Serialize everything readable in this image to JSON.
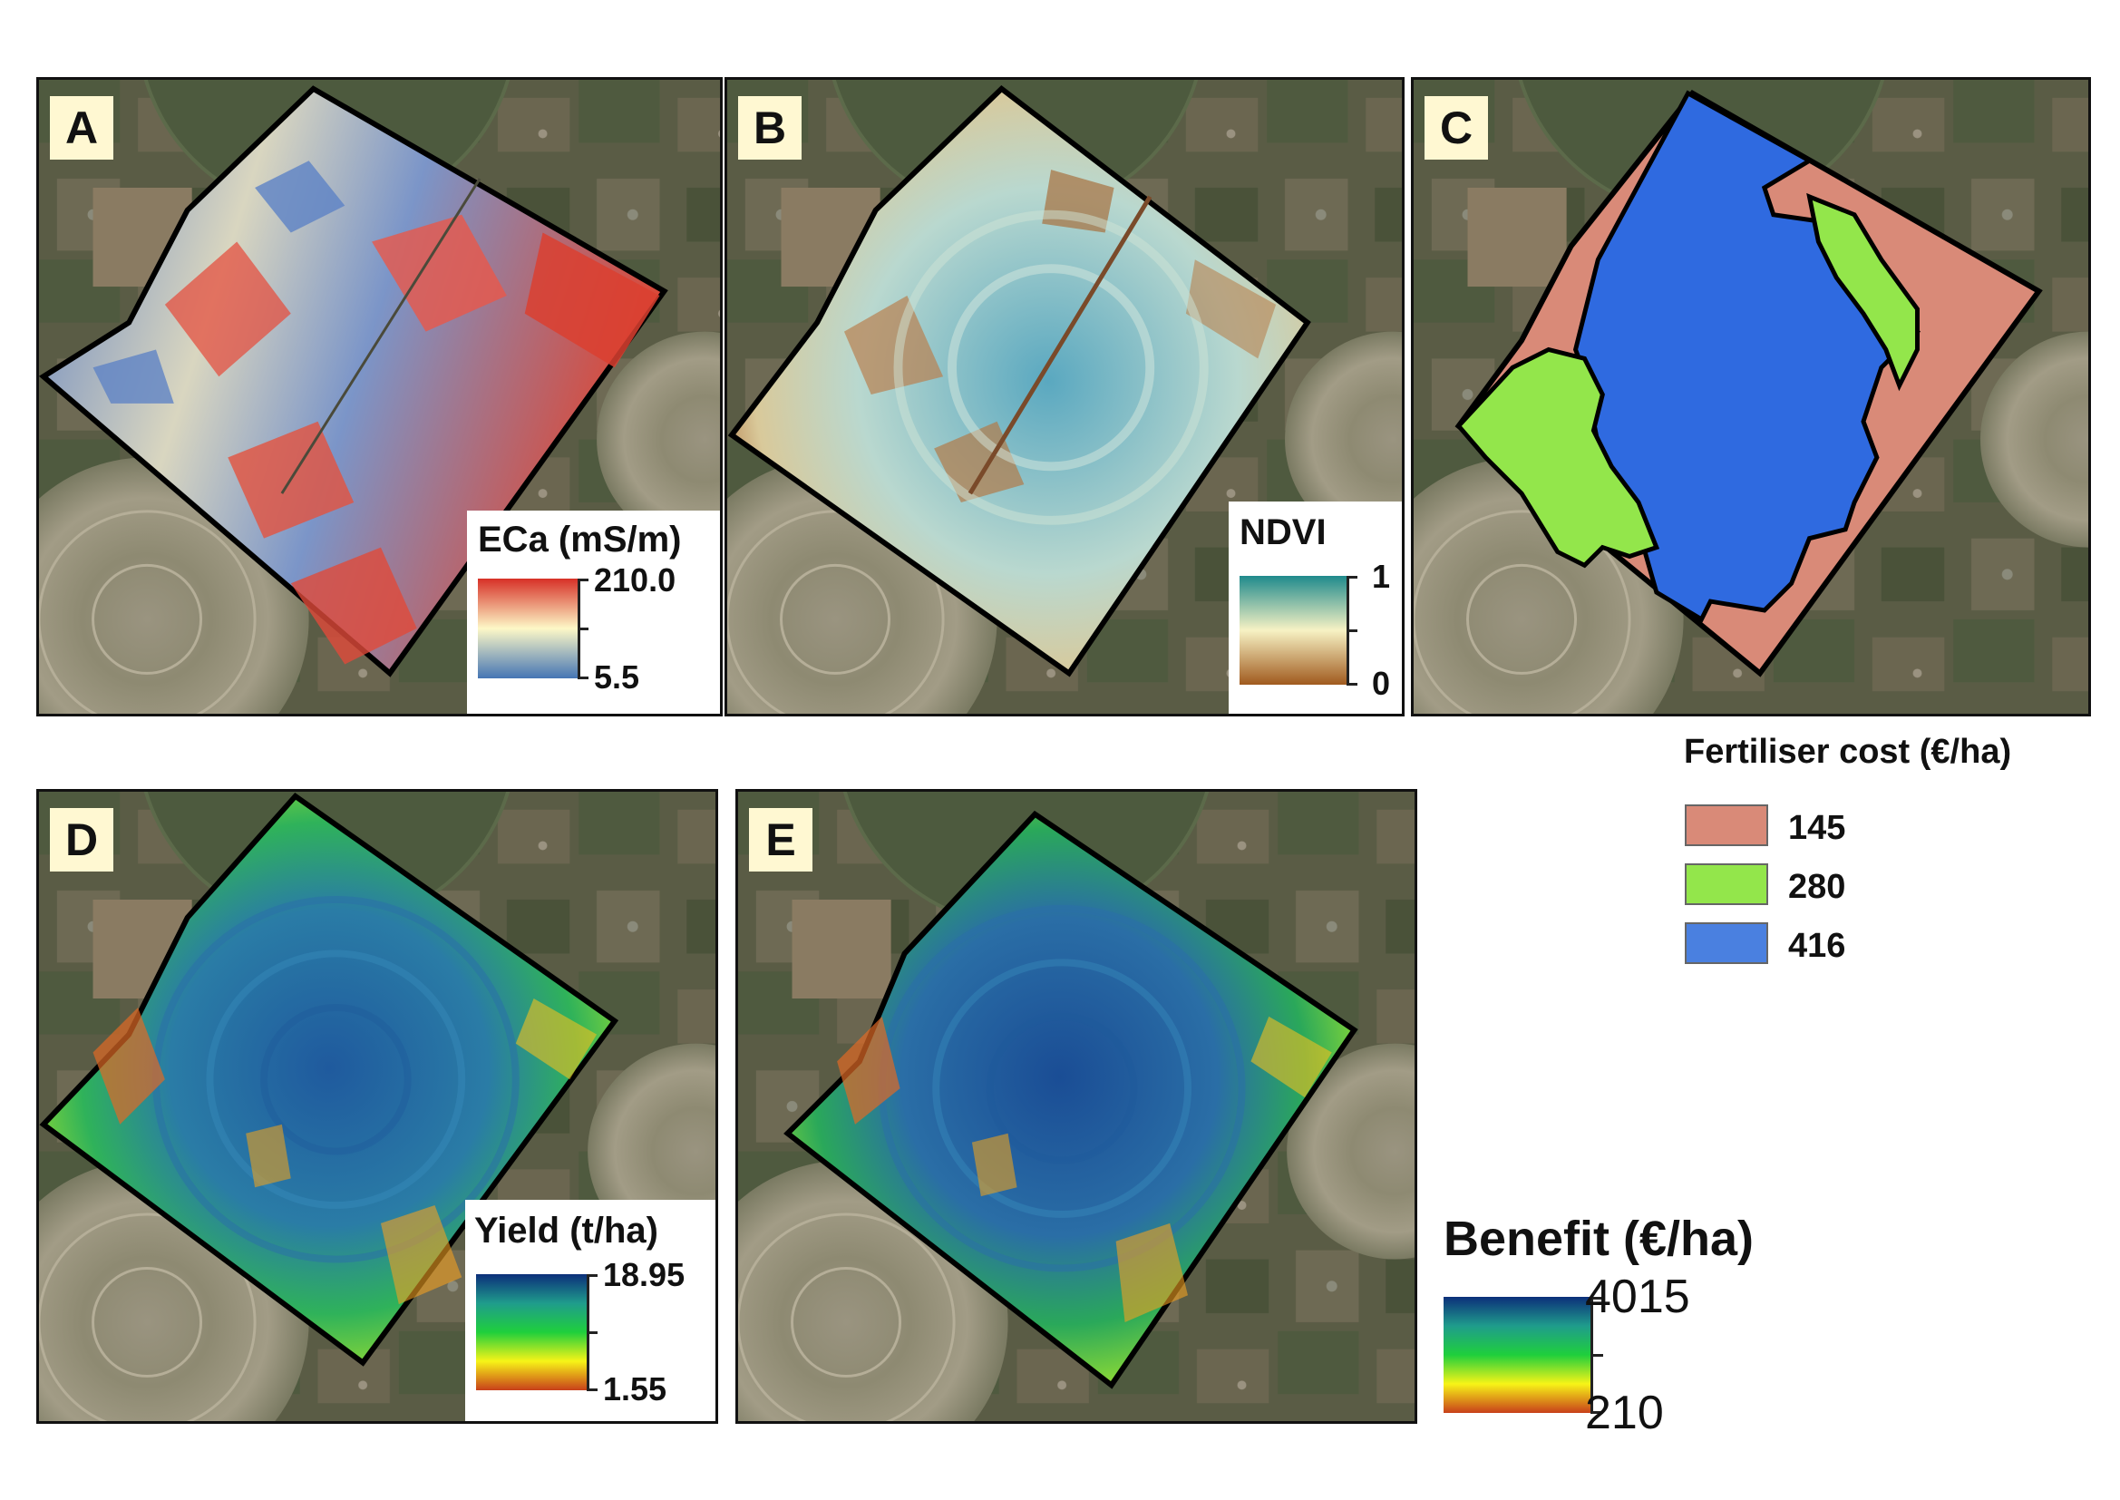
{
  "panels": [
    {
      "id": "A",
      "label": "A"
    },
    {
      "id": "B",
      "label": "B"
    },
    {
      "id": "C",
      "label": "C"
    },
    {
      "id": "D",
      "label": "D"
    },
    {
      "id": "E",
      "label": "E"
    }
  ],
  "legend_eca": {
    "title": "ECa (mS/m)",
    "max": "210.0",
    "min": "5.5",
    "colors": [
      "#d73027",
      "#fdf8c7",
      "#4575b4"
    ]
  },
  "legend_ndvi": {
    "title": "NDVI",
    "max": "1",
    "min": "0",
    "colors": [
      "#1f8a8c",
      "#f7f2c4",
      "#a05a1e"
    ]
  },
  "legend_fert": {
    "title": "Fertiliser cost (€/ha)",
    "items": [
      {
        "label": "145",
        "color": "#d98a78"
      },
      {
        "label": "280",
        "color": "#93e64b"
      },
      {
        "label": "416",
        "color": "#4a80e0"
      }
    ]
  },
  "legend_yield": {
    "title": "Yield (t/ha)",
    "max": "18.95",
    "min": "1.55",
    "colors": [
      "#0c2f7a",
      "#1f9c8c",
      "#1fcf3c",
      "#f7f417",
      "#c8401a"
    ]
  },
  "legend_benefit": {
    "title": "Benefit (€/ha)",
    "max": "4015",
    "min": "210",
    "colors": [
      "#0c2f7a",
      "#1f9c8c",
      "#1fcf3c",
      "#f7f417",
      "#c8401a"
    ]
  }
}
